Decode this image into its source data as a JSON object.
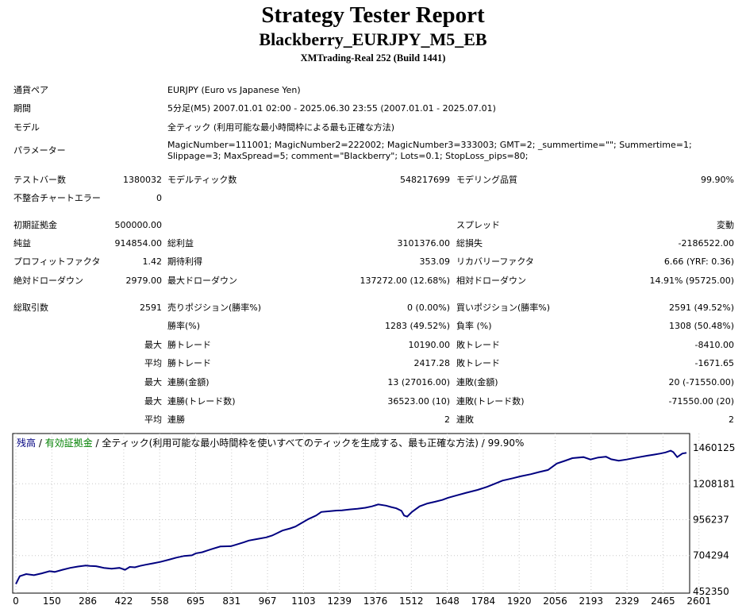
{
  "header": {
    "title": "Strategy Tester Report",
    "subtitle": "Blackberry_EURJPY_M5_EB",
    "build": "XMTrading-Real 252 (Build 1441)"
  },
  "info": {
    "symbol_label": "通貨ペア",
    "symbol_value": "EURJPY (Euro vs Japanese Yen)",
    "period_label": "期間",
    "period_value": "5分足(M5) 2007.01.01 02:00 - 2025.06.30 23:55 (2007.01.01 - 2025.07.01)",
    "model_label": "モデル",
    "model_value": "全ティック (利用可能な最小時間枠による最も正確な方法)",
    "params_label": "パラメーター",
    "params_value": "MagicNumber=111001; MagicNumber2=222002; MagicNumber3=333003; GMT=2; _summertime=\"\"; Summertime=1; Slippage=3; MaxSpread=5; comment=\"Blackberry\"; Lots=0.1; StopLoss_pips=80;"
  },
  "stats": {
    "bars_label": "テストバー数",
    "bars_value": "1380032",
    "ticks_label": "モデルティック数",
    "ticks_value": "548217699",
    "quality_label": "モデリング品質",
    "quality_value": "99.90%",
    "errors_label": "不整合チャートエラー",
    "errors_value": "0",
    "deposit_label": "初期証拠金",
    "deposit_value": "500000.00",
    "spread_label": "スプレッド",
    "spread_value": "変動",
    "net_label": "純益",
    "net_value": "914854.00",
    "gross_profit_label": "総利益",
    "gross_profit_value": "3101376.00",
    "gross_loss_label": "総損失",
    "gross_loss_value": "-2186522.00",
    "pf_label": "プロフィットファクタ",
    "pf_value": "1.42",
    "expected_label": "期待利得",
    "expected_value": "353.09",
    "recovery_label": "リカバリーファクタ",
    "recovery_value": "6.66 (YRF: 0.36)",
    "abs_dd_label": "絶対ドローダウン",
    "abs_dd_value": "2979.00",
    "max_dd_label": "最大ドローダウン",
    "max_dd_value": "137272.00 (12.68%)",
    "rel_dd_label": "相対ドローダウン",
    "rel_dd_value": "14.91% (95725.00)",
    "total_trades_label": "総取引数",
    "total_trades_value": "2591",
    "short_label": "売りポジション(勝率%)",
    "short_value": "0 (0.00%)",
    "long_label": "買いポジション(勝率%)",
    "long_value": "2591 (49.52%)",
    "winrate_label": "勝率(%)",
    "winrate_value": "1283 (49.52%)",
    "lossrate_label": "負率 (%)",
    "lossrate_value": "1308 (50.48%)",
    "max_prefix": "最大",
    "avg_prefix": "平均",
    "largest_win_label": "勝トレード",
    "largest_win_value": "10190.00",
    "largest_loss_label": "敗トレード",
    "largest_loss_value": "-8410.00",
    "avg_win_label": "勝トレード",
    "avg_win_value": "2417.28",
    "avg_loss_label": "敗トレード",
    "avg_loss_value": "-1671.65",
    "max_cons_wins_label": "連勝(金額)",
    "max_cons_wins_value": "13 (27016.00)",
    "max_cons_losses_label": "連敗(金額)",
    "max_cons_losses_value": "20 (-71550.00)",
    "max_cons_profit_label": "連勝(トレード数)",
    "max_cons_profit_value": "36523.00 (10)",
    "max_cons_loss_label": "連敗(トレード数)",
    "max_cons_loss_value": "-71550.00 (20)",
    "avg_cons_wins_label": "連勝",
    "avg_cons_wins_value": "2",
    "avg_cons_losses_label": "連敗",
    "avg_cons_losses_value": "2"
  },
  "chart_data": {
    "type": "line",
    "legend_balance": "残高",
    "legend_sep": " / ",
    "legend_equity": "有効証拠金",
    "legend_rest": " / 全ティック(利用可能な最小時間枠を使いすべてのティックを生成する、最も正確な方法) / 99.90%",
    "colors": {
      "balance": "#000080",
      "equity": "#008000",
      "grid": "#c8c8c8"
    },
    "x_ticks": [
      "0",
      "150",
      "286",
      "422",
      "558",
      "695",
      "831",
      "967",
      "1103",
      "1239",
      "1376",
      "1512",
      "1648",
      "1784",
      "1920",
      "2056",
      "2193",
      "2329",
      "2465",
      "2601"
    ],
    "y_ticks": [
      "1460125",
      "1208181",
      "956237",
      "704294",
      "452350"
    ],
    "xlim": [
      0,
      2591
    ],
    "ylim": [
      452350,
      1460125
    ],
    "series": [
      {
        "name": "残高",
        "x": [
          0,
          15,
          40,
          70,
          100,
          130,
          150,
          180,
          210,
          240,
          270,
          286,
          310,
          340,
          370,
          400,
          422,
          440,
          460,
          480,
          500,
          530,
          558,
          590,
          620,
          650,
          680,
          695,
          720,
          740,
          760,
          790,
          831,
          860,
          880,
          900,
          930,
          967,
          990,
          1010,
          1030,
          1060,
          1080,
          1103,
          1130,
          1160,
          1180,
          1210,
          1239,
          1260,
          1290,
          1320,
          1350,
          1376,
          1400,
          1430,
          1450,
          1470,
          1490,
          1500,
          1512,
          1530,
          1560,
          1590,
          1620,
          1648,
          1670,
          1700,
          1740,
          1784,
          1820,
          1850,
          1880,
          1920,
          1950,
          1990,
          2020,
          2056,
          2090,
          2120,
          2150,
          2193,
          2220,
          2250,
          2280,
          2300,
          2329,
          2360,
          2400,
          2440,
          2465,
          2490,
          2510,
          2530,
          2540,
          2555,
          2575,
          2591
        ],
        "y": [
          505000,
          560000,
          575000,
          567000,
          580000,
          595000,
          590000,
          605000,
          618000,
          628000,
          635000,
          632000,
          630000,
          618000,
          612000,
          618000,
          605000,
          625000,
          622000,
          632000,
          640000,
          650000,
          660000,
          675000,
          690000,
          702000,
          706000,
          720000,
          728000,
          740000,
          752000,
          768000,
          770000,
          786000,
          797000,
          810000,
          820000,
          832000,
          845000,
          862000,
          880000,
          895000,
          908000,
          932000,
          960000,
          985000,
          1010000,
          1015000,
          1020000,
          1022000,
          1028000,
          1033000,
          1040000,
          1050000,
          1063000,
          1055000,
          1045000,
          1036000,
          1018000,
          985000,
          978000,
          1010000,
          1050000,
          1070000,
          1082000,
          1095000,
          1110000,
          1125000,
          1145000,
          1165000,
          1186000,
          1208000,
          1230000,
          1247000,
          1260000,
          1275000,
          1290000,
          1305000,
          1350000,
          1368000,
          1388000,
          1395000,
          1378000,
          1392000,
          1398000,
          1380000,
          1370000,
          1378000,
          1392000,
          1405000,
          1412000,
          1420000,
          1428000,
          1440000,
          1430000,
          1395000,
          1420000,
          1425000
        ]
      }
    ]
  }
}
